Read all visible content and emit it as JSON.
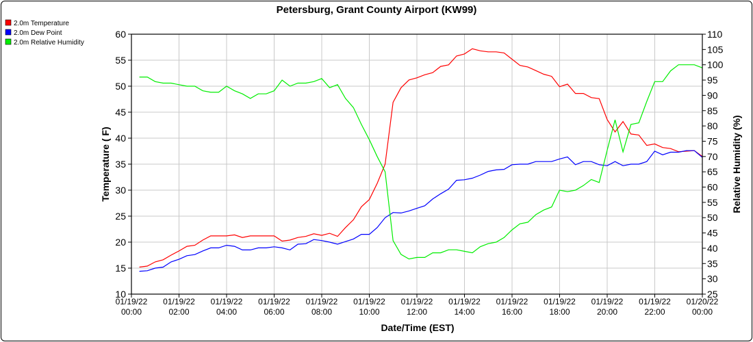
{
  "chart_data": {
    "type": "line",
    "title": "Petersburg, Grant County Airport (KW99)",
    "xlabel": "Date/Time (EST)",
    "ylabel": "Temperature ( F)",
    "y2label": "Relative Humidity (%)",
    "ylim": [
      10,
      60
    ],
    "y2lim": [
      25,
      110
    ],
    "xlim_hours": [
      0,
      24
    ],
    "yticks": [
      10,
      15,
      20,
      25,
      30,
      35,
      40,
      45,
      50,
      55,
      60
    ],
    "y2ticks": [
      25,
      30,
      35,
      40,
      45,
      50,
      55,
      60,
      65,
      70,
      75,
      80,
      85,
      90,
      95,
      100,
      105,
      110
    ],
    "xticks": [
      {
        "hour": 0,
        "date": "01/19/22",
        "time": "00:00"
      },
      {
        "hour": 2,
        "date": "01/19/22",
        "time": "02:00"
      },
      {
        "hour": 4,
        "date": "01/19/22",
        "time": "04:00"
      },
      {
        "hour": 6,
        "date": "01/19/22",
        "time": "06:00"
      },
      {
        "hour": 8,
        "date": "01/19/22",
        "time": "08:00"
      },
      {
        "hour": 10,
        "date": "01/19/22",
        "time": "10:00"
      },
      {
        "hour": 12,
        "date": "01/19/22",
        "time": "12:00"
      },
      {
        "hour": 14,
        "date": "01/19/22",
        "time": "14:00"
      },
      {
        "hour": 16,
        "date": "01/19/22",
        "time": "16:00"
      },
      {
        "hour": 18,
        "date": "01/19/22",
        "time": "18:00"
      },
      {
        "hour": 20,
        "date": "01/19/22",
        "time": "20:00"
      },
      {
        "hour": 22,
        "date": "01/19/22",
        "time": "22:00"
      },
      {
        "hour": 24,
        "date": "01/20/22",
        "time": "00:00"
      }
    ],
    "grid": true,
    "legend_position": "top-left",
    "x_start_hours": 0.333,
    "x_step_hours": 0.3333,
    "series": [
      {
        "name": "2.0m Temperature",
        "color": "#ff0000",
        "axis": "left",
        "values": [
          15.2,
          15.4,
          16.2,
          16.6,
          17.5,
          18.3,
          19.2,
          19.4,
          20.4,
          21.2,
          21.2,
          21.2,
          21.4,
          20.9,
          21.2,
          21.2,
          21.2,
          21.2,
          20.2,
          20.4,
          20.9,
          21.1,
          21.6,
          21.3,
          21.7,
          21.1,
          22.8,
          24.3,
          26.8,
          28.2,
          31.3,
          35,
          46.9,
          49.7,
          51.2,
          51.6,
          52.2,
          52.6,
          53.8,
          54.1,
          55.8,
          56.2,
          57.2,
          56.8,
          56.6,
          56.6,
          56.4,
          55.2,
          54,
          53.7,
          53,
          52.3,
          51.9,
          49.9,
          50.4,
          48.6,
          48.6,
          47.8,
          47.6,
          43.6,
          41.2,
          43.2,
          40.8,
          40.6,
          38.6,
          38.9,
          38.2,
          38,
          37.4,
          37.5,
          37.6,
          36.5
        ]
      },
      {
        "name": "2.0m Dew Point",
        "color": "#0000ff",
        "axis": "left",
        "values": [
          14.4,
          14.5,
          15,
          15.2,
          16.2,
          16.7,
          17.4,
          17.6,
          18.3,
          18.9,
          18.9,
          19.4,
          19.2,
          18.5,
          18.5,
          18.9,
          18.9,
          19.1,
          18.9,
          18.5,
          19.6,
          19.7,
          20.5,
          20.3,
          20,
          19.6,
          20.1,
          20.6,
          21.5,
          21.5,
          22.8,
          24.7,
          25.7,
          25.6,
          26,
          26.5,
          27,
          28.3,
          29.3,
          30.2,
          31.9,
          32,
          32.3,
          32.9,
          33.6,
          33.9,
          34,
          34.9,
          35,
          35,
          35.5,
          35.5,
          35.5,
          36,
          36.4,
          34.9,
          35.5,
          35.5,
          34.9,
          34.7,
          35.5,
          34.7,
          35,
          35,
          35.5,
          37.5,
          36.8,
          37.3,
          37.3,
          37.6,
          37.6,
          36.3
        ]
      },
      {
        "name": "2.0m Relative Humidity",
        "color": "#00ee00",
        "axis": "right",
        "values": [
          96,
          96,
          94.5,
          94,
          94,
          93.5,
          93,
          93,
          91.5,
          91,
          91,
          93,
          91.5,
          90.5,
          89,
          90.5,
          90.5,
          91.5,
          95,
          93,
          94,
          94,
          94.5,
          95.5,
          92.5,
          93.5,
          89,
          86,
          80.5,
          75.5,
          70,
          65,
          42.5,
          38,
          36.5,
          37,
          37,
          38.5,
          38.5,
          39.5,
          39.5,
          39,
          38.5,
          40.5,
          41.5,
          42,
          43.5,
          46,
          48,
          48.5,
          51,
          52.5,
          53.5,
          59,
          58.5,
          59,
          60.5,
          62.5,
          61.5,
          72,
          82,
          71.5,
          80.5,
          81,
          88,
          94.5,
          94.5,
          98,
          100,
          100,
          100,
          99
        ]
      }
    ]
  }
}
